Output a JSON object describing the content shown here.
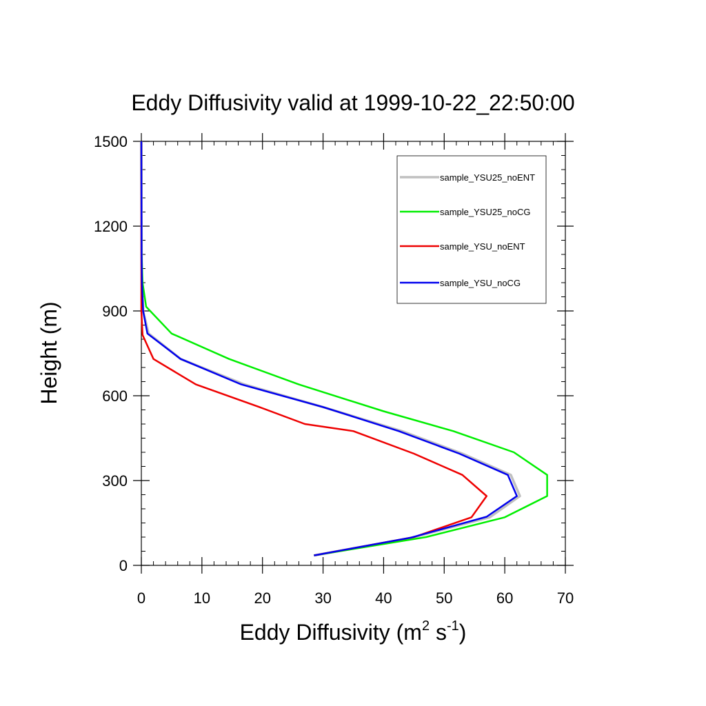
{
  "chart_data": {
    "type": "line",
    "title": "Eddy Diffusivity valid at 1999-10-22_22:50:00",
    "xlabel": {
      "base": "Eddy Diffusivity (m",
      "sup1": "2",
      "mid": " s",
      "sup2": "-1",
      "end": ")"
    },
    "ylabel": "Height (m)",
    "xlim": [
      0,
      70
    ],
    "ylim": [
      0,
      1500
    ],
    "xticks": [
      0,
      10,
      20,
      30,
      40,
      50,
      60,
      70
    ],
    "yticks": [
      0,
      300,
      600,
      900,
      1200,
      1500
    ],
    "x_minor_step": 2,
    "y_minor_step": 50,
    "grid": false,
    "legend_position": "top-right",
    "series": [
      {
        "name": "sample_YSU25_noENT",
        "color": "#c0c0c0",
        "width": 3.5,
        "points": [
          [
            28.5,
            35
          ],
          [
            44.5,
            97
          ],
          [
            57.5,
            170
          ],
          [
            62.5,
            245
          ],
          [
            61,
            320
          ],
          [
            53,
            395
          ],
          [
            43,
            475
          ],
          [
            30,
            560
          ],
          [
            17,
            640
          ],
          [
            6.5,
            730
          ],
          [
            1.2,
            820
          ],
          [
            0.3,
            900
          ],
          [
            0.1,
            1000
          ],
          [
            0.05,
            1100
          ],
          [
            0,
            1500
          ]
        ]
      },
      {
        "name": "sample_YSU25_noCG",
        "color": "#00ee00",
        "width": 2.5,
        "points": [
          [
            28.5,
            35
          ],
          [
            47,
            100
          ],
          [
            60,
            170
          ],
          [
            67,
            245
          ],
          [
            67,
            320
          ],
          [
            61.5,
            400
          ],
          [
            51.5,
            475
          ],
          [
            40,
            545
          ],
          [
            26,
            640
          ],
          [
            14.5,
            730
          ],
          [
            5,
            820
          ],
          [
            0.8,
            915
          ],
          [
            0.2,
            1000
          ],
          [
            0.05,
            1100
          ],
          [
            0,
            1500
          ]
        ]
      },
      {
        "name": "sample_YSU_noENT",
        "color": "#ee0000",
        "width": 2.5,
        "points": [
          [
            28.5,
            35
          ],
          [
            45,
            100
          ],
          [
            54.5,
            170
          ],
          [
            57,
            245
          ],
          [
            53,
            320
          ],
          [
            45,
            395
          ],
          [
            35,
            475
          ],
          [
            27,
            500
          ],
          [
            19.5,
            560
          ],
          [
            9,
            640
          ],
          [
            2,
            730
          ],
          [
            0.2,
            815
          ],
          [
            0,
            900
          ],
          [
            0,
            1500
          ]
        ]
      },
      {
        "name": "sample_YSU_noCG",
        "color": "#0000ee",
        "width": 2.5,
        "points": [
          [
            28.5,
            35
          ],
          [
            44.5,
            98
          ],
          [
            57,
            172
          ],
          [
            62,
            245
          ],
          [
            60.5,
            320
          ],
          [
            52.5,
            395
          ],
          [
            42.5,
            475
          ],
          [
            30,
            560
          ],
          [
            16.5,
            640
          ],
          [
            6.5,
            730
          ],
          [
            1,
            820
          ],
          [
            0.3,
            900
          ],
          [
            0.1,
            1000
          ],
          [
            0.05,
            1100
          ],
          [
            0,
            1500
          ]
        ]
      }
    ]
  }
}
